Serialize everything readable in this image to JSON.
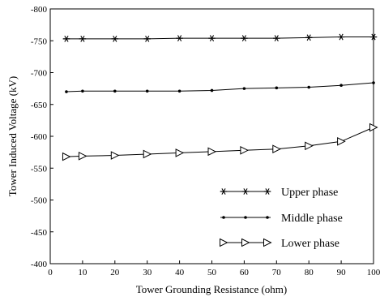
{
  "chart_data": {
    "type": "line",
    "xlabel": "Tower Grounding Resistance (ohm)",
    "ylabel": "Tower Induced Voltage (kV)",
    "xlim": [
      0,
      100
    ],
    "ylim": [
      -800,
      -400
    ],
    "y_axis_inverted": true,
    "grid": false,
    "legend_position": "bottom-right",
    "x_ticks": [
      "0",
      "10",
      "20",
      "30",
      "40",
      "50",
      "60",
      "70",
      "80",
      "90",
      "100"
    ],
    "y_ticks": [
      "-800",
      "-750",
      "-700",
      "-650",
      "-600",
      "-550",
      "-500",
      "-450",
      "-400"
    ],
    "x": [
      5,
      10,
      20,
      30,
      40,
      50,
      60,
      70,
      80,
      90,
      100
    ],
    "series": [
      {
        "name": "Upper phase",
        "marker": "asterisk",
        "values": [
          -753,
          -753,
          -753,
          -753,
          -754,
          -754,
          -754,
          -754,
          -755,
          -756,
          -756
        ]
      },
      {
        "name": "Middle phase",
        "marker": "dot",
        "values": [
          -670,
          -671,
          -671,
          -671,
          -671,
          -672,
          -675,
          -676,
          -677,
          -680,
          -684
        ]
      },
      {
        "name": "Lower phase",
        "marker": "triangle-right",
        "values": [
          -568,
          -569,
          -570,
          -572,
          -574,
          -576,
          -578,
          -580,
          -585,
          -592,
          -614
        ]
      }
    ]
  }
}
